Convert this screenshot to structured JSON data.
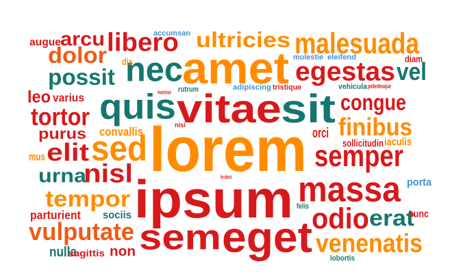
{
  "palette": {
    "red": "#d7191c",
    "dark_red": "#c0000b",
    "orange": "#ff8c00",
    "teal": "#15776f",
    "blue": "#4691d3",
    "orange_red": "#f25a14"
  },
  "words": [
    {
      "text": "lorem",
      "color": "orange"
    },
    {
      "text": "ipsum",
      "color": "red"
    },
    {
      "text": "amet",
      "color": "orange"
    },
    {
      "text": "vitae",
      "color": "red"
    },
    {
      "text": "sit",
      "color": "teal"
    },
    {
      "text": "quis",
      "color": "teal"
    },
    {
      "text": "sed",
      "color": "orange"
    },
    {
      "text": "eget",
      "color": "red"
    },
    {
      "text": "massa",
      "color": "red"
    },
    {
      "text": "nec",
      "color": "teal"
    },
    {
      "text": "sem",
      "color": "red"
    },
    {
      "text": "semper",
      "color": "red"
    },
    {
      "text": "malesuada",
      "color": "orange"
    },
    {
      "text": "egestas",
      "color": "red"
    },
    {
      "text": "ultricies",
      "color": "orange"
    },
    {
      "text": "libero",
      "color": "red"
    },
    {
      "text": "arcu",
      "color": "red"
    },
    {
      "text": "dolor",
      "color": "orange_red"
    },
    {
      "text": "possit",
      "color": "teal"
    },
    {
      "text": "vel",
      "color": "teal"
    },
    {
      "text": "congue",
      "color": "red"
    },
    {
      "text": "finibus",
      "color": "orange"
    },
    {
      "text": "tortor",
      "color": "red"
    },
    {
      "text": "elit",
      "color": "red"
    },
    {
      "text": "nisl",
      "color": "red"
    },
    {
      "text": "urna",
      "color": "teal"
    },
    {
      "text": "tempor",
      "color": "orange"
    },
    {
      "text": "vulputate",
      "color": "orange_red"
    },
    {
      "text": "odio",
      "color": "red"
    },
    {
      "text": "erat",
      "color": "teal"
    },
    {
      "text": "venenatis",
      "color": "orange"
    },
    {
      "text": "purus",
      "color": "red"
    },
    {
      "text": "leo",
      "color": "red"
    },
    {
      "text": "non",
      "color": "red"
    },
    {
      "text": "nulla",
      "color": "teal"
    },
    {
      "text": "varius",
      "color": "red"
    },
    {
      "text": "orci",
      "color": "red"
    },
    {
      "text": "porta",
      "color": "blue"
    },
    {
      "text": "nunc",
      "color": "red"
    },
    {
      "text": "diam",
      "color": "red"
    },
    {
      "text": "iaculis",
      "color": "orange"
    },
    {
      "text": "convallis",
      "color": "orange"
    },
    {
      "text": "sollicitudin",
      "color": "red"
    },
    {
      "text": "mus",
      "color": "orange"
    },
    {
      "text": "sociis",
      "color": "teal"
    },
    {
      "text": "parturient",
      "color": "red"
    },
    {
      "text": "sagittis",
      "color": "red"
    },
    {
      "text": "augue",
      "color": "red"
    },
    {
      "text": "dis",
      "color": "orange"
    },
    {
      "text": "accumsan",
      "color": "blue"
    },
    {
      "text": "molestie",
      "color": "blue"
    },
    {
      "text": "eleifend",
      "color": "blue"
    },
    {
      "text": "adipiscing",
      "color": "blue"
    },
    {
      "text": "tristique",
      "color": "red"
    },
    {
      "text": "rutrum",
      "color": "teal"
    },
    {
      "text": "vehicula",
      "color": "teal"
    },
    {
      "text": "pellentesque",
      "color": "red"
    },
    {
      "text": "maximus",
      "color": "red"
    },
    {
      "text": "nisi",
      "color": "red"
    },
    {
      "text": "lobortis",
      "color": "teal"
    },
    {
      "text": "felis",
      "color": "teal"
    },
    {
      "text": "tincidunt",
      "color": "red"
    }
  ]
}
